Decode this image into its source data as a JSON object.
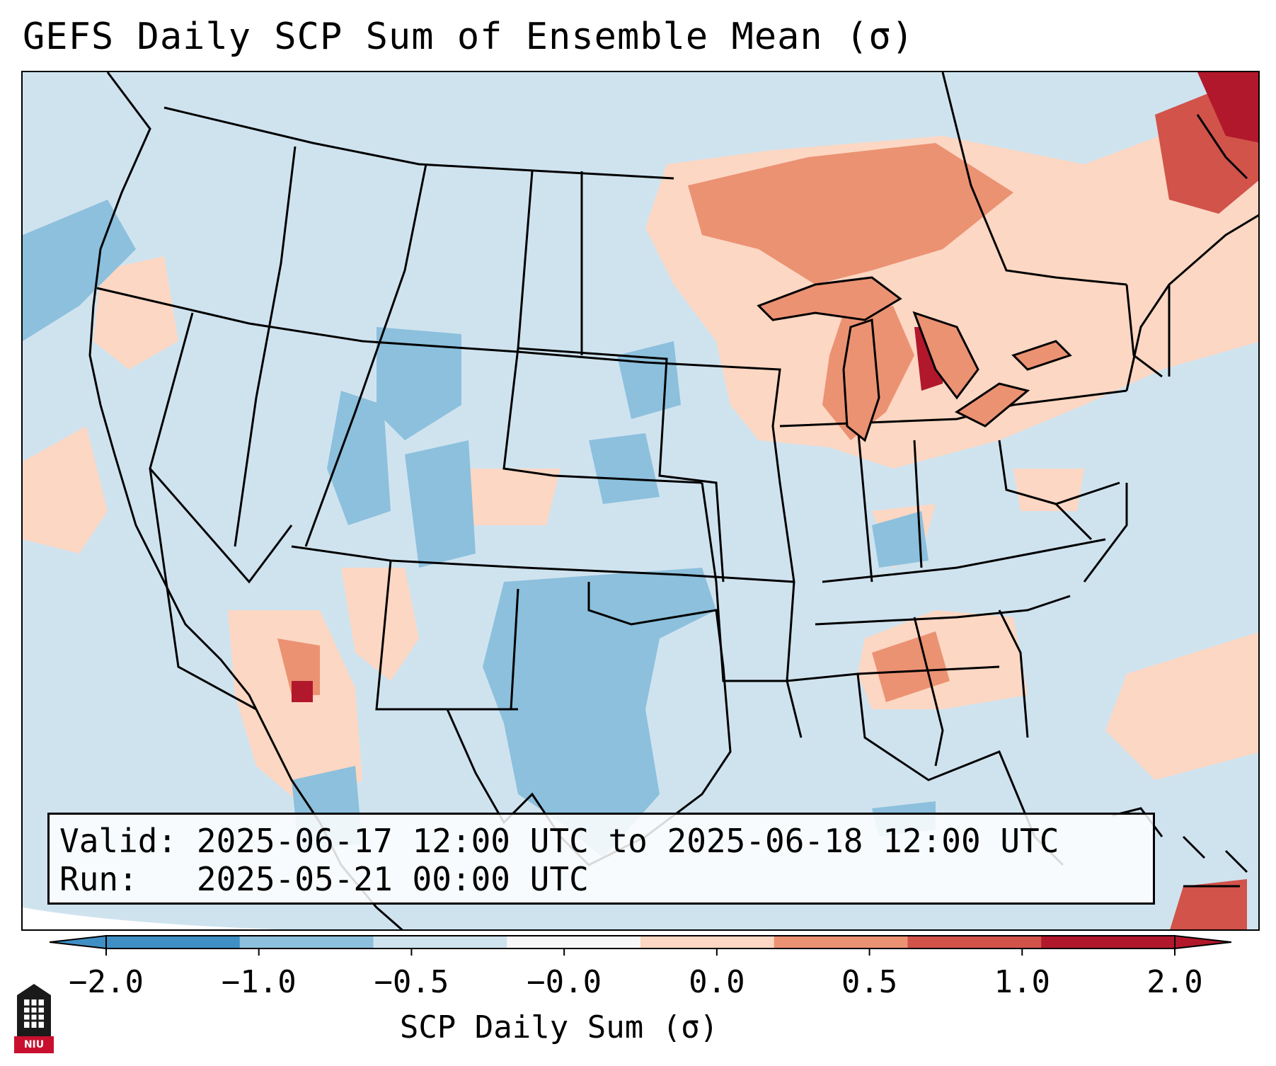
{
  "title": "GEFS Daily SCP Sum of Ensemble Mean (σ)",
  "info": {
    "valid_label": "Valid:",
    "valid_value": "2025-06-17 12:00 UTC to 2025-06-18 12:00 UTC",
    "run_label": "Run:  ",
    "run_value": "2025-05-21 00:00 UTC"
  },
  "colorbar": {
    "label": "SCP Daily Sum (σ)",
    "ticks": [
      "−2.0",
      "−1.0",
      "−0.5",
      "−0.0",
      "0.0",
      "0.5",
      "1.0",
      "2.0"
    ],
    "colors": [
      "#3f8fc4",
      "#8cc0dd",
      "#cfe3ef",
      "#f7f7f7",
      "#fcd7c3",
      "#eb9273",
      "#d1534a",
      "#b2182b"
    ]
  },
  "logo": {
    "text": "NIU"
  }
}
